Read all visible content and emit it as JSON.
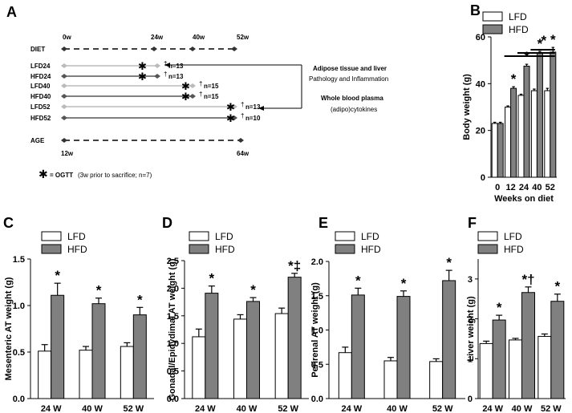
{
  "panels": {
    "A": "A",
    "B": "B",
    "C": "C",
    "D": "D",
    "E": "E",
    "F": "F"
  },
  "timeline": {
    "rows": [
      {
        "label": "DIET",
        "end": "52w",
        "star": false,
        "n": ""
      },
      {
        "label": "LFD24",
        "end": "24w",
        "star": true,
        "n": "n=13"
      },
      {
        "label": "HFD24",
        "end": "24w",
        "star": true,
        "n": "n=13"
      },
      {
        "label": "LFD40",
        "end": "40w",
        "star": true,
        "n": "n=15"
      },
      {
        "label": "HFD40",
        "end": "40w",
        "star": true,
        "n": "n=15"
      },
      {
        "label": "LFD52",
        "end": "52w",
        "star": true,
        "n": "n=13"
      },
      {
        "label": "HFD52",
        "end": "52w",
        "star": true,
        "n": "n=10"
      },
      {
        "label": "AGE",
        "end": "64w",
        "star": false,
        "n": ""
      }
    ],
    "top_ticks": [
      "0w",
      "24w",
      "40w",
      "52w"
    ],
    "age_ticks": [
      "12w",
      "64w"
    ],
    "dagger": "†",
    "adipose_title": "Adipose tissue and liver",
    "adipose_sub": "Pathology and Inflammation",
    "plasma_title": "Whole blood plasma",
    "plasma_sub": "(adipo)cytokines",
    "ogtt_star": "✱",
    "ogtt_label": "= OGTT",
    "ogtt_note": "(3w prior to sacrifice; n=7)"
  },
  "colors": {
    "lfd": "#ffffff",
    "hfd": "#808080",
    "line": "#000000",
    "lfd_line": "#bbbbbb",
    "hfd_line": "#555555"
  },
  "chart_data": [
    {
      "id": "B",
      "type": "bar",
      "title": "",
      "xlabel": "Weeks on diet",
      "ylabel": "Body weight (g)",
      "categories": [
        "0",
        "12",
        "24",
        "40",
        "52"
      ],
      "ylim": [
        0,
        60
      ],
      "yticks": [
        "0",
        "20",
        "40",
        "60"
      ],
      "legend": [
        "LFD",
        "HFD"
      ],
      "series": [
        {
          "name": "LFD",
          "values": [
            23,
            30,
            35,
            37,
            37
          ],
          "errors": [
            0.5,
            0.5,
            0.5,
            0.7,
            1
          ]
        },
        {
          "name": "HFD",
          "values": [
            23,
            38,
            47.5,
            53,
            53.5
          ],
          "errors": [
            0.5,
            0.7,
            0.8,
            0.8,
            2
          ]
        }
      ],
      "markers": [
        "",
        "*",
        "*",
        "*",
        "*"
      ],
      "top_marker": "*"
    },
    {
      "id": "C",
      "type": "bar",
      "title": "",
      "xlabel": "",
      "ylabel": "Mesenteric AT weight (g)",
      "categories": [
        "24 W",
        "40 W",
        "52 W"
      ],
      "ylim": [
        0,
        1.5
      ],
      "yticks": [
        "0.0",
        "0.5",
        "1.0",
        "1.5"
      ],
      "legend": [
        "LFD",
        "HFD"
      ],
      "series": [
        {
          "name": "LFD",
          "values": [
            0.51,
            0.52,
            0.56
          ],
          "errors": [
            0.07,
            0.04,
            0.04
          ]
        },
        {
          "name": "HFD",
          "values": [
            1.11,
            1.02,
            0.9
          ],
          "errors": [
            0.13,
            0.06,
            0.08
          ]
        }
      ],
      "markers": [
        "*",
        "*",
        "*"
      ]
    },
    {
      "id": "D",
      "type": "bar",
      "title": "",
      "xlabel": "",
      "ylabel": "Gonadal/Epidydimal AT weight (g)",
      "categories": [
        "24 W",
        "40 W",
        "52 W"
      ],
      "ylim": [
        0,
        2.5
      ],
      "yticks": [
        "0.0",
        "0.5",
        "1.0",
        "1.5",
        "2.0",
        "2.5"
      ],
      "legend": [
        "LFD",
        "HFD"
      ],
      "series": [
        {
          "name": "LFD",
          "values": [
            1.12,
            1.44,
            1.54
          ],
          "errors": [
            0.14,
            0.08,
            0.1
          ]
        },
        {
          "name": "HFD",
          "values": [
            1.91,
            1.76,
            2.2
          ],
          "errors": [
            0.13,
            0.07,
            0.07
          ]
        }
      ],
      "markers": [
        "*",
        "*",
        "*‡"
      ]
    },
    {
      "id": "E",
      "type": "bar",
      "title": "",
      "xlabel": "",
      "ylabel": "Perirenal AT weight (g)",
      "categories": [
        "24 W",
        "40 W",
        "52 W"
      ],
      "ylim": [
        0,
        2.0
      ],
      "yticks": [
        "0.0",
        "0.5",
        "1.0",
        "1.5",
        "2.0"
      ],
      "legend": [
        "LFD",
        "HFD"
      ],
      "series": [
        {
          "name": "LFD",
          "values": [
            0.67,
            0.55,
            0.54
          ],
          "errors": [
            0.08,
            0.05,
            0.04
          ]
        },
        {
          "name": "HFD",
          "values": [
            1.51,
            1.49,
            1.72
          ],
          "errors": [
            0.1,
            0.08,
            0.15
          ]
        }
      ],
      "markers": [
        "*",
        "*",
        "*"
      ]
    },
    {
      "id": "F",
      "type": "bar",
      "title": "",
      "xlabel": "",
      "ylabel": "Liver weight (g)",
      "categories": [
        "24 W",
        "40 W",
        "52 W"
      ],
      "ylim": [
        0,
        3.5
      ],
      "yticks": [
        "0",
        "1",
        "2",
        "3"
      ],
      "legend": [
        "LFD",
        "HFD"
      ],
      "series": [
        {
          "name": "LFD",
          "values": [
            1.38,
            1.47,
            1.56
          ],
          "errors": [
            0.06,
            0.04,
            0.06
          ]
        },
        {
          "name": "HFD",
          "values": [
            1.97,
            2.66,
            2.44
          ],
          "errors": [
            0.12,
            0.14,
            0.18
          ]
        }
      ],
      "markers": [
        "*",
        "*†",
        "*"
      ]
    }
  ]
}
